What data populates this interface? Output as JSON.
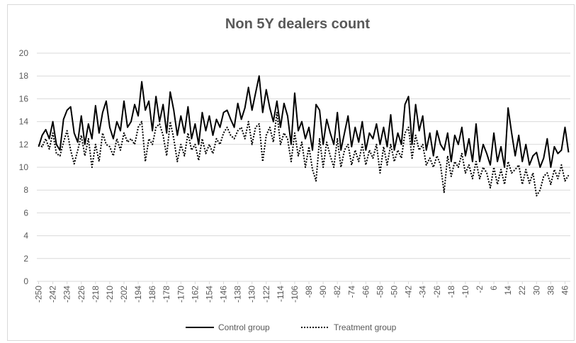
{
  "chart_data": {
    "type": "line",
    "title": "Non 5Y dealers count",
    "x": [
      -250,
      -248,
      -246,
      -244,
      -242,
      -240,
      -238,
      -236,
      -234,
      -232,
      -230,
      -228,
      -226,
      -224,
      -222,
      -220,
      -218,
      -216,
      -214,
      -212,
      -210,
      -208,
      -206,
      -204,
      -202,
      -200,
      -198,
      -196,
      -194,
      -192,
      -190,
      -188,
      -186,
      -184,
      -182,
      -180,
      -178,
      -176,
      -174,
      -172,
      -170,
      -168,
      -166,
      -164,
      -162,
      -160,
      -158,
      -156,
      -154,
      -152,
      -150,
      -148,
      -146,
      -144,
      -142,
      -140,
      -138,
      -136,
      -134,
      -132,
      -130,
      -128,
      -126,
      -124,
      -122,
      -120,
      -118,
      -116,
      -114,
      -112,
      -110,
      -108,
      -106,
      -104,
      -102,
      -100,
      -98,
      -96,
      -94,
      -92,
      -90,
      -88,
      -86,
      -84,
      -82,
      -80,
      -78,
      -76,
      -74,
      -72,
      -70,
      -68,
      -66,
      -64,
      -62,
      -60,
      -58,
      -56,
      -54,
      -52,
      -50,
      -48,
      -46,
      -44,
      -42,
      -40,
      -38,
      -36,
      -34,
      -32,
      -30,
      -28,
      -26,
      -24,
      -22,
      -20,
      -18,
      -16,
      -14,
      -12,
      -10,
      -8,
      -6,
      -4,
      -2,
      0,
      2,
      4,
      6,
      8,
      10,
      12,
      14,
      16,
      18,
      20,
      22,
      24,
      26,
      28,
      30,
      32,
      34,
      36,
      38,
      40,
      42,
      44,
      46,
      48
    ],
    "series": [
      {
        "name": "Control group",
        "color": "#000000",
        "dash": "solid",
        "values": [
          11.8,
          12.8,
          13.3,
          12.5,
          14.0,
          12.0,
          11.5,
          14.2,
          15.0,
          15.3,
          13.0,
          12.2,
          14.5,
          12.0,
          13.8,
          12.5,
          15.4,
          13.0,
          14.8,
          15.8,
          13.5,
          12.5,
          14.0,
          13.2,
          15.8,
          13.5,
          14.0,
          15.5,
          14.5,
          17.5,
          15.0,
          15.8,
          13.2,
          16.2,
          14.0,
          15.5,
          13.0,
          16.6,
          15.0,
          12.8,
          14.5,
          13.0,
          15.3,
          12.5,
          13.8,
          12.0,
          14.8,
          13.2,
          14.5,
          12.8,
          14.2,
          13.5,
          14.8,
          15.0,
          14.2,
          13.5,
          15.6,
          14.2,
          15.2,
          17.0,
          15.0,
          16.5,
          18.0,
          14.8,
          16.8,
          15.2,
          14.0,
          15.8,
          13.5,
          15.6,
          14.5,
          12.0,
          16.5,
          13.2,
          14.0,
          12.5,
          13.5,
          11.5,
          15.5,
          15.0,
          12.0,
          14.2,
          13.0,
          12.0,
          14.8,
          11.5,
          13.0,
          14.5,
          11.8,
          13.5,
          12.2,
          14.0,
          11.5,
          13.0,
          12.5,
          13.8,
          12.0,
          13.5,
          11.8,
          14.6,
          11.5,
          13.0,
          12.0,
          15.5,
          16.2,
          12.0,
          15.5,
          13.2,
          14.5,
          11.5,
          13.0,
          11.0,
          13.2,
          12.0,
          11.5,
          13.0,
          10.5,
          12.8,
          12.0,
          13.5,
          11.0,
          12.5,
          10.5,
          13.8,
          10.5,
          12.0,
          11.2,
          10.2,
          13.0,
          10.5,
          11.8,
          10.0,
          15.2,
          13.0,
          11.0,
          12.8,
          10.5,
          12.0,
          10.2,
          11.0,
          11.3,
          10.0,
          10.8,
          12.5,
          10.0,
          11.8,
          11.2,
          11.5,
          13.5,
          11.3
        ]
      },
      {
        "name": "Treatment group",
        "color": "#000000",
        "dash": "dotted",
        "values": [
          12.0,
          11.8,
          12.5,
          11.6,
          13.0,
          11.2,
          11.0,
          12.2,
          13.2,
          11.5,
          10.3,
          11.5,
          12.8,
          11.0,
          12.5,
          10.0,
          12.0,
          10.5,
          13.0,
          12.0,
          11.8,
          11.0,
          12.5,
          11.5,
          13.0,
          12.2,
          12.5,
          12.0,
          13.5,
          14.0,
          10.5,
          12.5,
          12.0,
          13.5,
          13.8,
          12.8,
          11.0,
          14.0,
          12.5,
          10.5,
          12.0,
          11.0,
          13.0,
          11.5,
          12.0,
          10.6,
          12.5,
          11.2,
          12.0,
          11.2,
          12.5,
          12.0,
          13.0,
          13.5,
          12.8,
          12.5,
          13.2,
          13.5,
          12.5,
          14.0,
          12.0,
          13.5,
          13.8,
          10.5,
          12.8,
          13.5,
          12.2,
          14.8,
          12.0,
          13.0,
          12.5,
          10.5,
          13.0,
          11.0,
          12.2,
          10.0,
          11.8,
          9.8,
          8.8,
          12.5,
          10.0,
          12.2,
          11.0,
          10.0,
          12.5,
          10.0,
          11.5,
          12.0,
          10.2,
          11.5,
          10.5,
          12.0,
          10.2,
          11.5,
          10.8,
          12.0,
          9.5,
          11.8,
          10.2,
          12.0,
          10.5,
          11.5,
          10.8,
          13.0,
          13.5,
          10.8,
          12.8,
          11.5,
          12.0,
          10.2,
          10.8,
          10.0,
          11.0,
          10.2,
          7.8,
          11.0,
          9.2,
          10.5,
          10.0,
          11.2,
          9.5,
          10.2,
          9.0,
          10.5,
          9.0,
          10.0,
          9.5,
          8.2,
          10.0,
          8.5,
          9.8,
          8.5,
          10.5,
          9.5,
          9.8,
          10.2,
          8.5,
          9.8,
          8.6,
          9.5,
          7.5,
          8.0,
          9.2,
          9.5,
          8.5,
          9.8,
          9.0,
          10.2,
          8.8,
          9.3
        ]
      }
    ],
    "xlim": [
      -251,
      49
    ],
    "xticks": [
      -250,
      -242,
      -234,
      -226,
      -218,
      -210,
      -202,
      -194,
      -186,
      -178,
      -170,
      -162,
      -154,
      -146,
      -138,
      -130,
      -122,
      -114,
      -106,
      -98,
      -90,
      -82,
      -74,
      -66,
      -58,
      -50,
      -42,
      -34,
      -26,
      -18,
      -10,
      -2,
      6,
      14,
      22,
      30,
      38,
      46
    ],
    "ylim": [
      0,
      20
    ],
    "yticks": [
      0,
      2,
      4,
      6,
      8,
      10,
      12,
      14,
      16,
      18,
      20
    ],
    "grid": true,
    "legend": "bottom"
  }
}
